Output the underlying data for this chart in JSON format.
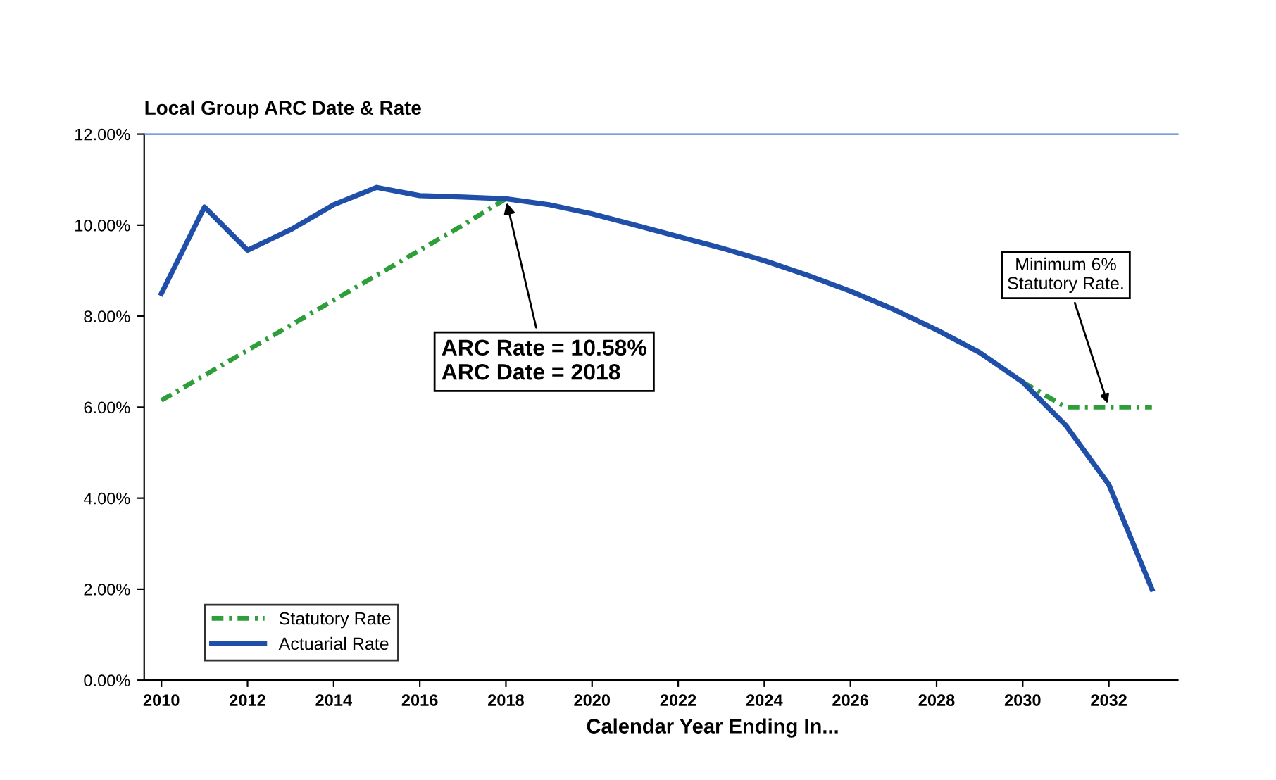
{
  "chart_data": {
    "type": "line",
    "title": "Local Group ARC Date & Rate",
    "xlabel": "Calendar Year Ending In...",
    "x": [
      2010,
      2011,
      2012,
      2013,
      2014,
      2015,
      2016,
      2017,
      2018,
      2019,
      2020,
      2021,
      2022,
      2023,
      2024,
      2025,
      2026,
      2027,
      2028,
      2029,
      2030,
      2031,
      2032,
      2033
    ],
    "series": [
      {
        "name": "Statutory Rate",
        "color": "#2e9e3a",
        "line_style": "dashed",
        "values": [
          6.15,
          6.7,
          7.25,
          7.8,
          8.35,
          8.9,
          9.45,
          10.0,
          10.58,
          null,
          null,
          null,
          null,
          null,
          null,
          null,
          null,
          null,
          null,
          null,
          6.55,
          6.0,
          6.0,
          6.0
        ]
      },
      {
        "name": "Actuarial Rate",
        "color": "#1f4fa8",
        "line_style": "solid",
        "values": [
          8.5,
          10.4,
          9.45,
          9.9,
          10.45,
          10.83,
          10.65,
          10.62,
          10.58,
          10.45,
          10.25,
          10.0,
          9.75,
          9.5,
          9.22,
          8.9,
          8.55,
          8.15,
          7.7,
          7.2,
          6.55,
          5.6,
          4.3,
          2.0
        ]
      }
    ],
    "xlim": [
      2009.6,
      2033.6
    ],
    "xticks": [
      2010,
      2012,
      2014,
      2016,
      2018,
      2020,
      2022,
      2024,
      2026,
      2028,
      2030,
      2032
    ],
    "ylim": [
      0,
      12
    ],
    "yticks": [
      {
        "value": 0,
        "label": "0.00%"
      },
      {
        "value": 2,
        "label": "2.00%"
      },
      {
        "value": 4,
        "label": "4.00%"
      },
      {
        "value": 6,
        "label": "6.00%"
      },
      {
        "value": 8,
        "label": "8.00%"
      },
      {
        "value": 10,
        "label": "10.00%"
      },
      {
        "value": 12,
        "label": "12.00%"
      }
    ],
    "annotations": [
      {
        "text": "ARC Rate = 10.58%\nARC Date = 2018",
        "x": 2018,
        "y": 10.58
      },
      {
        "text": "Minimum 6%\nStatutory Rate.",
        "x": 2032,
        "y": 6.0
      }
    ],
    "grid": false,
    "legend": "bottom left",
    "marker": "none"
  }
}
